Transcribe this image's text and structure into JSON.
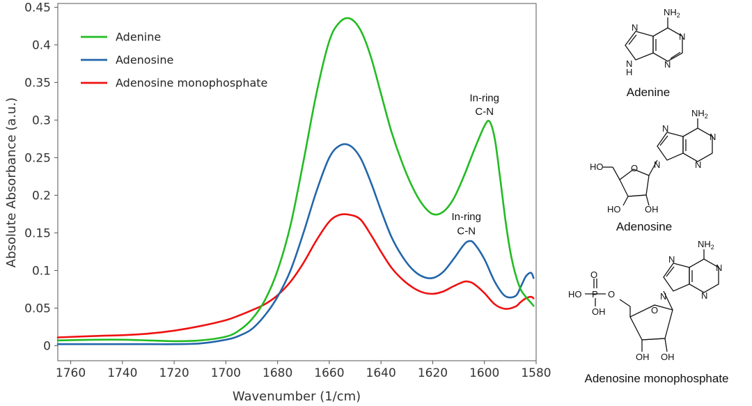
{
  "chart_data": {
    "type": "line",
    "xlabel": "Wavenumber (1/cm)",
    "ylabel": "Absolute Absorbance (a.u.)",
    "xlim": [
      1580,
      1765
    ],
    "x_reversed": true,
    "ylim": [
      -0.02,
      0.455
    ],
    "x_ticks": [
      1760,
      1740,
      1720,
      1700,
      1680,
      1660,
      1640,
      1620,
      1600,
      1580
    ],
    "y_ticks": [
      0,
      0.05,
      0.1,
      0.15,
      0.2,
      0.25,
      0.3,
      0.35,
      0.4,
      0.45
    ],
    "y_tick_labels": [
      "0",
      "0.05",
      "0.1",
      "0.15",
      "0.2",
      "0.25",
      "0.3",
      "0.35",
      "0.4",
      "0.45"
    ],
    "grid": false,
    "legend_position": "top-left",
    "series": [
      {
        "name": "Adenine",
        "color": "#22bb22",
        "x": [
          1765,
          1750,
          1740,
          1730,
          1720,
          1710,
          1700,
          1695,
          1690,
          1685,
          1680,
          1675,
          1670,
          1665,
          1660,
          1656,
          1652,
          1648,
          1644,
          1640,
          1636,
          1632,
          1628,
          1624,
          1620,
          1616,
          1612,
          1608,
          1604,
          1600,
          1598,
          1596,
          1594,
          1592,
          1590,
          1588,
          1586,
          1584,
          1582,
          1581
        ],
        "y": [
          0.007,
          0.008,
          0.008,
          0.007,
          0.006,
          0.007,
          0.012,
          0.02,
          0.035,
          0.06,
          0.1,
          0.16,
          0.245,
          0.335,
          0.405,
          0.43,
          0.435,
          0.42,
          0.385,
          0.335,
          0.285,
          0.245,
          0.212,
          0.188,
          0.175,
          0.178,
          0.195,
          0.225,
          0.26,
          0.292,
          0.298,
          0.275,
          0.225,
          0.17,
          0.125,
          0.095,
          0.075,
          0.065,
          0.057,
          0.053
        ]
      },
      {
        "name": "Adenosine",
        "color": "#2266aa",
        "x": [
          1765,
          1750,
          1740,
          1730,
          1720,
          1710,
          1700,
          1695,
          1690,
          1685,
          1680,
          1675,
          1670,
          1665,
          1660,
          1656,
          1652,
          1648,
          1644,
          1640,
          1636,
          1632,
          1628,
          1624,
          1620,
          1616,
          1612,
          1608,
          1606,
          1604,
          1600,
          1596,
          1592,
          1588,
          1586,
          1584,
          1582,
          1581
        ],
        "y": [
          0.002,
          0.002,
          0.002,
          0.002,
          0.002,
          0.003,
          0.008,
          0.013,
          0.022,
          0.04,
          0.065,
          0.1,
          0.15,
          0.205,
          0.25,
          0.266,
          0.266,
          0.25,
          0.218,
          0.18,
          0.145,
          0.12,
          0.102,
          0.092,
          0.09,
          0.098,
          0.115,
          0.134,
          0.139,
          0.136,
          0.115,
          0.085,
          0.066,
          0.066,
          0.078,
          0.092,
          0.097,
          0.09
        ]
      },
      {
        "name": "Adenosine monophosphate",
        "color": "#ee1111",
        "x": [
          1765,
          1750,
          1740,
          1730,
          1720,
          1710,
          1700,
          1695,
          1690,
          1685,
          1680,
          1675,
          1670,
          1665,
          1660,
          1656,
          1652,
          1648,
          1644,
          1640,
          1636,
          1632,
          1628,
          1624,
          1620,
          1616,
          1612,
          1608,
          1606,
          1604,
          1600,
          1596,
          1592,
          1588,
          1586,
          1584,
          1582,
          1581
        ],
        "y": [
          0.011,
          0.013,
          0.014,
          0.016,
          0.02,
          0.026,
          0.034,
          0.04,
          0.047,
          0.055,
          0.067,
          0.085,
          0.11,
          0.14,
          0.165,
          0.174,
          0.174,
          0.168,
          0.148,
          0.125,
          0.104,
          0.089,
          0.078,
          0.071,
          0.069,
          0.072,
          0.079,
          0.085,
          0.085,
          0.082,
          0.07,
          0.055,
          0.049,
          0.052,
          0.058,
          0.063,
          0.065,
          0.063
        ]
      }
    ],
    "annotations": [
      {
        "text": "-NH2",
        "x": 1653,
        "y": 0.46
      },
      {
        "text": "In-ring",
        "x": 1600,
        "y": 0.325
      },
      {
        "text": "C-N",
        "x": 1600,
        "y": 0.307
      },
      {
        "text": "In-ring",
        "x": 1607,
        "y": 0.167
      },
      {
        "text": "C-N",
        "x": 1607,
        "y": 0.148
      }
    ]
  },
  "molecules": [
    {
      "name": "Adenine",
      "icon": "adenine-structure"
    },
    {
      "name": "Adenosine",
      "icon": "adenosine-structure"
    },
    {
      "name": "Adenosine monophosphate",
      "icon": "amp-structure"
    }
  ]
}
